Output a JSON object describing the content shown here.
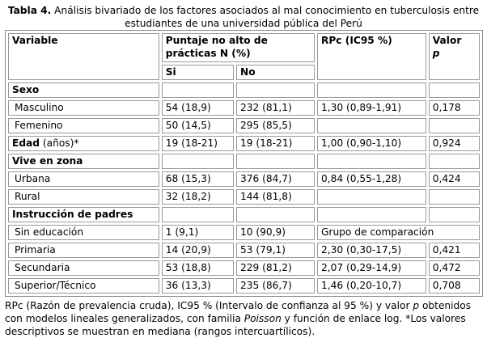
{
  "caption": {
    "label": "Tabla 4.",
    "text": " Análisis bivariado de los factores asociados al mal conocimiento en tuberculosis entre estudiantes de una universidad pública del Perú"
  },
  "header": {
    "variable": "Variable",
    "group": "Puntaje no alto de prácticas N (%)",
    "si": "Si",
    "no": "No",
    "rpc": "RPc (IC95 %)",
    "valor": "Valor",
    "p": "p"
  },
  "rows": [
    {
      "type": "section",
      "label": "Sexo"
    },
    {
      "type": "data",
      "label": "Masculino",
      "si": "54 (18,9)",
      "no": "232 (81,1)",
      "rpc": "1,30 (0,89-1,91)",
      "p": "0,178"
    },
    {
      "type": "data",
      "label": "Femenino",
      "si": "50 (14,5)",
      "no": "295 (85,5)",
      "rpc": "",
      "p": ""
    },
    {
      "type": "edad",
      "label": "Edad",
      "suffix": " (años)*",
      "si": "19 (18-21)",
      "no": "19 (18-21)",
      "rpc": "1,00 (0,90-1,10)",
      "p": "0,924"
    },
    {
      "type": "section",
      "label": "Vive en zona"
    },
    {
      "type": "data",
      "label": "Urbana",
      "si": "68 (15,3)",
      "no": "376 (84,7)",
      "rpc": "0,84 (0,55-1,28)",
      "p": "0,424"
    },
    {
      "type": "data",
      "label": "Rural",
      "si": "32 (18,2)",
      "no": "144 (81,8)",
      "rpc": "",
      "p": ""
    },
    {
      "type": "section",
      "label": "Instrucción de padres"
    },
    {
      "type": "ref",
      "label": "Sin educación",
      "si": "1 (9,1)",
      "no": "10 (90,9)",
      "rpc": "Grupo de comparación"
    },
    {
      "type": "data",
      "label": "Primaria",
      "si": "14 (20,9)",
      "no": "53 (79,1)",
      "rpc": "2,30 (0,30-17,5)",
      "p": "0,421"
    },
    {
      "type": "data",
      "label": "Secundaria",
      "si": "53 (18,8)",
      "no": "229 (81,2)",
      "rpc": "2,07 (0,29-14,9)",
      "p": "0,472"
    },
    {
      "type": "data",
      "label": "Superior/Técnico",
      "si": "36 (13,3)",
      "no": "235 (86,7)",
      "rpc": "1,46 (0,20-10,7)",
      "p": "0,708"
    }
  ],
  "footnote": {
    "part1": "RPc (Razón de prevalencia cruda), IC95 % (Intervalo de confianza al 95 %) y valor ",
    "p": "p",
    "part2": " obtenidos con modelos lineales generalizados, con familia ",
    "poisson": "Poisson",
    "part3": " y función de enlace log. *Los valores descriptivos se muestran en mediana (rangos intercuartílicos)."
  }
}
